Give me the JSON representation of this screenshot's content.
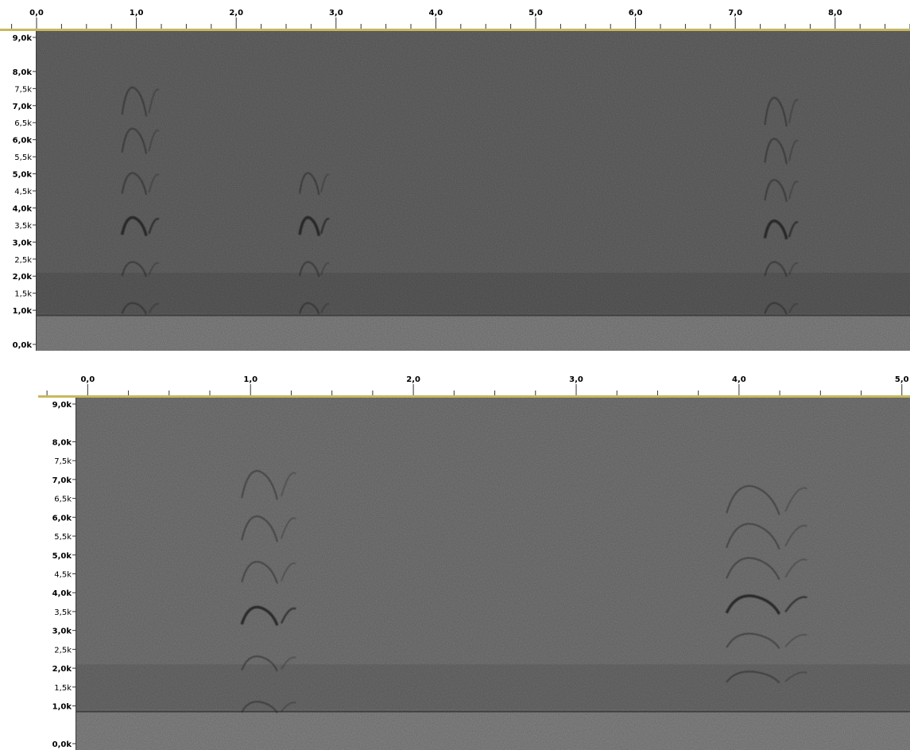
{
  "chart_data": [
    {
      "type": "heatmap",
      "subtype": "spectrogram",
      "title": "",
      "xlabel": "",
      "ylabel": "",
      "x_tick_labels": [
        "0,0",
        "1,0",
        "2,0",
        "3,0",
        "4,0",
        "5,0",
        "6,0",
        "7,0",
        "8,0"
      ],
      "x_ticks": [
        0,
        1,
        2,
        3,
        4,
        5,
        6,
        7,
        8
      ],
      "xlim": [
        0,
        8.75
      ],
      "y_tick_labels": [
        "0,0k",
        "1,0k",
        "1,5k",
        "2,0k",
        "2,5k",
        "3,0k",
        "3,5k",
        "4,0k",
        "4,5k",
        "5,0k",
        "5,5k",
        "6,0k",
        "6,5k",
        "7,0k",
        "7,5k",
        "8,0k",
        "9,0k"
      ],
      "y_ticks": [
        0,
        1000,
        1500,
        2000,
        2500,
        3000,
        3500,
        4000,
        4500,
        5000,
        5500,
        6000,
        6500,
        7000,
        7500,
        8000,
        9000
      ],
      "y_major_ticks": [
        0,
        1000,
        2000,
        3000,
        4000,
        5000,
        6000,
        7000,
        8000,
        9000
      ],
      "ylim": [
        0,
        9000
      ],
      "grid": false,
      "colors": {
        "background": "#6b6b6b",
        "ink": "#1c1c1c",
        "low_band": "#5a5a5a",
        "ruler_line": "#c8b860"
      },
      "calls": [
        {
          "t_start": 0.75,
          "t_end": 1.25,
          "harmonics_hz": [
            1200,
            2400,
            3700,
            5000,
            6300,
            7500
          ]
        },
        {
          "t_start": 2.55,
          "t_end": 2.95,
          "harmonics_hz": [
            1200,
            2400,
            3700,
            5000
          ]
        },
        {
          "t_start": 7.2,
          "t_end": 7.65,
          "harmonics_hz": [
            1200,
            2400,
            3600,
            4800,
            6000,
            7200
          ]
        }
      ]
    },
    {
      "type": "heatmap",
      "subtype": "spectrogram",
      "title": "",
      "xlabel": "",
      "ylabel": "",
      "x_tick_labels": [
        "0,0",
        "1,0",
        "2,0",
        "3,0",
        "4,0",
        "5,0"
      ],
      "x_ticks": [
        0,
        1,
        2,
        3,
        4,
        5
      ],
      "xlim": [
        -0.07,
        5.05
      ],
      "y_tick_labels": [
        "0,0k",
        "1,0k",
        "1,5k",
        "2,0k",
        "2,5k",
        "3,0k",
        "3,5k",
        "4,0k",
        "4,5k",
        "5,0k",
        "5,5k",
        "6,0k",
        "6,5k",
        "7,0k",
        "7,5k",
        "8,0k",
        "9,0k"
      ],
      "y_ticks": [
        0,
        1000,
        1500,
        2000,
        2500,
        3000,
        3500,
        4000,
        4500,
        5000,
        5500,
        6000,
        6500,
        7000,
        7500,
        8000,
        9000
      ],
      "y_major_ticks": [
        0,
        1000,
        2000,
        3000,
        4000,
        5000,
        6000,
        7000,
        8000,
        9000
      ],
      "ylim": [
        0,
        9000
      ],
      "grid": false,
      "colors": {
        "background": "#7d7d7d",
        "ink": "#1e1e1e",
        "low_band": "#6a6a6a",
        "ruler_line": "#c8b860"
      },
      "calls": [
        {
          "t_start": 0.85,
          "t_end": 1.3,
          "harmonics_hz": [
            1100,
            2300,
            3600,
            4800,
            6000,
            7200
          ]
        },
        {
          "t_start": 3.78,
          "t_end": 4.45,
          "harmonics_hz": [
            1900,
            2900,
            3900,
            4900,
            5800,
            6800
          ]
        }
      ]
    }
  ]
}
